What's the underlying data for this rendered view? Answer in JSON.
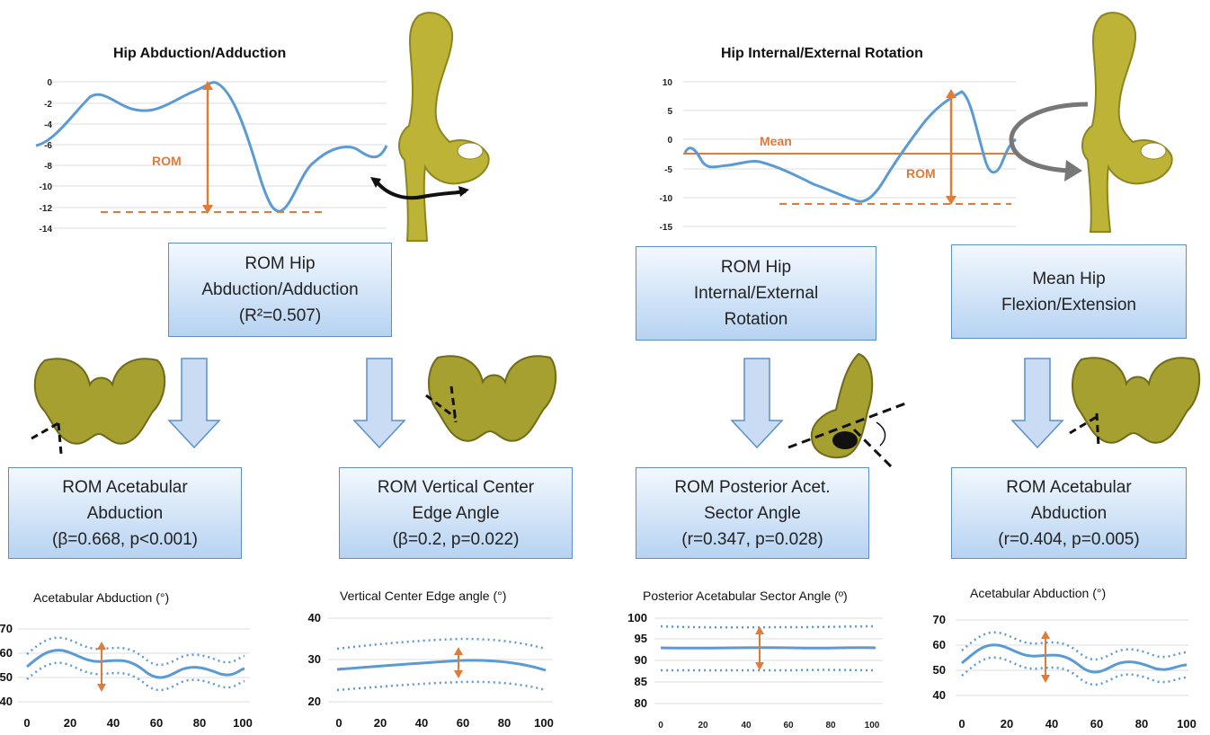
{
  "colors": {
    "curve": "#5b9bd5",
    "rom": "#e07b39",
    "box_border": "#5b8fc9",
    "bone": "#bdb437",
    "arrow_fill": "#c9dcf3"
  },
  "icons": {
    "femur": "femur-bone-icon",
    "pelvis": "pelvis-bone-icon",
    "rotation": "rotation-arrow-icon"
  },
  "chart_top_left": {
    "title": "Hip Abduction/Adduction",
    "rom_label": "ROM",
    "y_ticks": [
      "0",
      "-2",
      "-4",
      "-6",
      "-8",
      "-10",
      "-12",
      "-14"
    ]
  },
  "chart_top_right": {
    "title": "Hip Internal/External Rotation",
    "mean_label": "Mean",
    "rom_label": "ROM",
    "y_ticks": [
      "10",
      "5",
      "0",
      "-5",
      "-10",
      "-15"
    ]
  },
  "boxes": {
    "rom_hip_abd": [
      "ROM Hip",
      "Abduction/Adduction",
      "(R²=0.507)"
    ],
    "rom_hip_rot": [
      "ROM Hip",
      "Internal/External",
      "Rotation"
    ],
    "mean_hip_flex": [
      "Mean Hip",
      "Flexion/Extension"
    ],
    "rom_acet_abd": [
      "ROM Acetabular",
      "Abduction",
      "(β=0.668, p<0.001)"
    ],
    "rom_vcea": [
      "ROM Vertical Center",
      "Edge Angle",
      "(β=0.2, p=0.022)"
    ],
    "rom_pasa": [
      "ROM Posterior Acet.",
      "Sector Angle",
      "(r=0.347, p=0.028)"
    ],
    "rom_acet_abd2": [
      "ROM Acetabular",
      "Abduction",
      "(r=0.404, p=0.005)"
    ]
  },
  "small_charts": [
    {
      "title": "Acetabular Abduction (°)",
      "y_ticks": [
        "70",
        "60",
        "50",
        "40"
      ],
      "x_ticks": [
        "0",
        "20",
        "40",
        "60",
        "80",
        "100"
      ]
    },
    {
      "title": "Vertical Center Edge angle (°)",
      "y_ticks": [
        "40",
        "30",
        "20"
      ],
      "x_ticks": [
        "0",
        "20",
        "40",
        "60",
        "80",
        "100"
      ]
    },
    {
      "title": "Posterior Acetabular Sector Angle (º)",
      "y_ticks": [
        "100",
        "95",
        "90",
        "85",
        "80"
      ],
      "x_ticks": [
        "0",
        "20",
        "40",
        "60",
        "80",
        "100"
      ]
    },
    {
      "title": "Acetabular Abduction (°)",
      "y_ticks": [
        "70",
        "60",
        "50",
        "40"
      ],
      "x_ticks": [
        "0",
        "20",
        "40",
        "60",
        "80",
        "100"
      ]
    }
  ]
}
